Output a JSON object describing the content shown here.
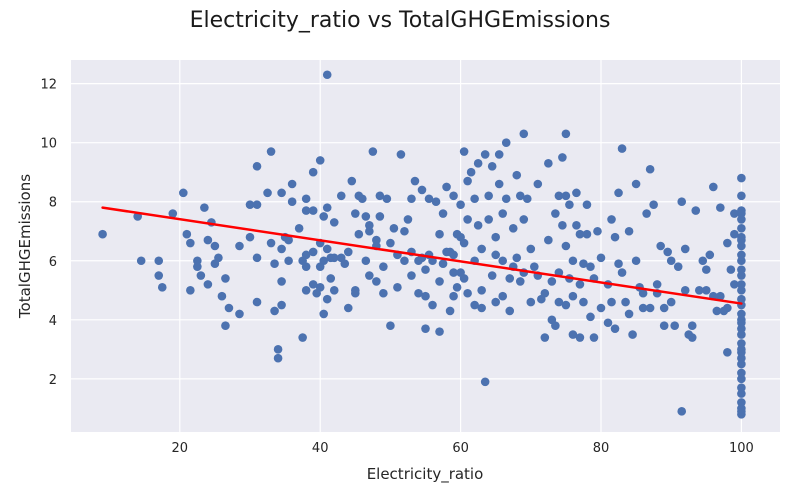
{
  "chart_data": {
    "type": "scatter",
    "title": "Electricity_ratio vs TotalGHGEmissions",
    "xlabel": "Electricity_ratio",
    "ylabel": "TotalGHGEmissions",
    "xlim": [
      4.5,
      105.5
    ],
    "ylim": [
      0.2,
      12.8
    ],
    "xticks": [
      20,
      40,
      60,
      80,
      100
    ],
    "yticks": [
      2,
      4,
      6,
      8,
      10,
      12
    ],
    "grid": true,
    "legend": "none",
    "colors": {
      "points": "#4c72b0",
      "trend": "#ff0000",
      "plot_bg": "#eaeaf2",
      "grid": "#ffffff"
    },
    "trend_line": {
      "x": [
        9,
        100
      ],
      "y": [
        7.8,
        4.55
      ]
    },
    "series": [
      {
        "name": "",
        "points": [
          [
            9,
            6.9
          ],
          [
            14,
            7.5
          ],
          [
            14.5,
            6.0
          ],
          [
            17,
            6.0
          ],
          [
            17,
            5.5
          ],
          [
            17.5,
            5.1
          ],
          [
            19,
            7.6
          ],
          [
            20.5,
            8.3
          ],
          [
            21,
            6.9
          ],
          [
            21.5,
            6.6
          ],
          [
            21.5,
            5.0
          ],
          [
            22.5,
            6.0
          ],
          [
            22.5,
            5.8
          ],
          [
            23,
            5.5
          ],
          [
            23.5,
            7.8
          ],
          [
            24,
            6.7
          ],
          [
            24,
            5.2
          ],
          [
            24.5,
            7.3
          ],
          [
            25,
            6.5
          ],
          [
            25,
            5.9
          ],
          [
            25.5,
            6.1
          ],
          [
            26,
            4.8
          ],
          [
            26.5,
            5.4
          ],
          [
            26.5,
            3.8
          ],
          [
            27,
            4.4
          ],
          [
            28.5,
            6.5
          ],
          [
            28.5,
            4.2
          ],
          [
            30,
            7.9
          ],
          [
            30,
            6.8
          ],
          [
            31,
            9.2
          ],
          [
            31,
            7.9
          ],
          [
            31,
            6.1
          ],
          [
            31,
            4.6
          ],
          [
            32.5,
            8.3
          ],
          [
            33,
            9.7
          ],
          [
            33,
            6.6
          ],
          [
            33.5,
            5.9
          ],
          [
            33.5,
            4.3
          ],
          [
            34,
            2.7
          ],
          [
            34,
            3.0
          ],
          [
            34.5,
            8.3
          ],
          [
            34.5,
            6.4
          ],
          [
            34.5,
            5.3
          ],
          [
            34.5,
            4.5
          ],
          [
            35,
            6.8
          ],
          [
            35.5,
            6.7
          ],
          [
            35.5,
            6.0
          ],
          [
            36,
            8.0
          ],
          [
            36,
            8.6
          ],
          [
            37,
            7.1
          ],
          [
            37.5,
            6.0
          ],
          [
            37.5,
            3.4
          ],
          [
            38,
            8.1
          ],
          [
            38,
            7.7
          ],
          [
            38,
            6.2
          ],
          [
            38,
            5.8
          ],
          [
            38,
            5.0
          ],
          [
            39,
            9.0
          ],
          [
            39,
            7.7
          ],
          [
            39,
            6.3
          ],
          [
            39,
            5.2
          ],
          [
            39.5,
            4.9
          ],
          [
            40,
            9.4
          ],
          [
            40,
            6.6
          ],
          [
            40,
            5.8
          ],
          [
            40,
            5.1
          ],
          [
            40.5,
            4.2
          ],
          [
            40.5,
            7.5
          ],
          [
            40.5,
            6.0
          ],
          [
            41,
            12.3
          ],
          [
            41,
            7.8
          ],
          [
            41,
            6.4
          ],
          [
            41,
            4.7
          ],
          [
            41.5,
            6.1
          ],
          [
            41.5,
            5.4
          ],
          [
            42,
            6.1
          ],
          [
            42,
            5.0
          ],
          [
            42,
            7.3
          ],
          [
            43,
            6.1
          ],
          [
            43,
            8.2
          ],
          [
            43.5,
            5.9
          ],
          [
            44,
            4.4
          ],
          [
            44,
            6.3
          ],
          [
            44.5,
            8.7
          ],
          [
            45,
            7.6
          ],
          [
            45,
            5.0
          ],
          [
            45,
            4.9
          ],
          [
            45.5,
            8.2
          ],
          [
            45.5,
            6.9
          ],
          [
            46,
            8.1
          ],
          [
            46.5,
            7.5
          ],
          [
            46.5,
            6.0
          ],
          [
            47,
            7.0
          ],
          [
            47,
            7.2
          ],
          [
            47,
            5.5
          ],
          [
            47.5,
            9.7
          ],
          [
            48,
            6.7
          ],
          [
            48,
            6.5
          ],
          [
            48,
            5.3
          ],
          [
            48.5,
            8.2
          ],
          [
            48.5,
            7.5
          ],
          [
            49,
            5.8
          ],
          [
            49,
            4.9
          ],
          [
            49.5,
            8.1
          ],
          [
            50,
            6.6
          ],
          [
            50,
            3.8
          ],
          [
            50.5,
            7.1
          ],
          [
            51,
            6.2
          ],
          [
            51,
            5.1
          ],
          [
            51.5,
            9.6
          ],
          [
            52,
            6.0
          ],
          [
            52,
            7.0
          ],
          [
            52.5,
            7.4
          ],
          [
            53,
            6.3
          ],
          [
            53,
            8.1
          ],
          [
            53,
            5.5
          ],
          [
            53.5,
            8.7
          ],
          [
            54,
            6.0
          ],
          [
            54,
            4.9
          ],
          [
            54.5,
            6.1
          ],
          [
            54.5,
            8.4
          ],
          [
            55,
            4.8
          ],
          [
            55,
            5.7
          ],
          [
            55,
            3.7
          ],
          [
            55.5,
            6.2
          ],
          [
            55.5,
            8.1
          ],
          [
            56,
            4.5
          ],
          [
            56,
            6.0
          ],
          [
            56.5,
            8.0
          ],
          [
            57,
            3.6
          ],
          [
            57,
            5.3
          ],
          [
            57,
            6.9
          ],
          [
            57.5,
            7.6
          ],
          [
            57.5,
            5.9
          ],
          [
            58,
            8.5
          ],
          [
            58,
            6.3
          ],
          [
            58.5,
            6.3
          ],
          [
            58.5,
            4.3
          ],
          [
            59,
            6.2
          ],
          [
            59,
            8.2
          ],
          [
            59,
            5.6
          ],
          [
            59,
            4.8
          ],
          [
            59.5,
            6.9
          ],
          [
            59.5,
            5.1
          ],
          [
            60,
            6.8
          ],
          [
            60,
            7.9
          ],
          [
            60,
            5.6
          ],
          [
            60.5,
            9.7
          ],
          [
            60.5,
            6.6
          ],
          [
            60.5,
            5.4
          ],
          [
            61,
            8.7
          ],
          [
            61,
            7.4
          ],
          [
            61,
            4.9
          ],
          [
            61.5,
            9.0
          ],
          [
            62,
            6.0
          ],
          [
            62,
            8.1
          ],
          [
            62,
            4.5
          ],
          [
            62.5,
            9.3
          ],
          [
            62.5,
            7.2
          ],
          [
            63,
            6.4
          ],
          [
            63,
            5.0
          ],
          [
            63,
            4.4
          ],
          [
            63.5,
            9.6
          ],
          [
            63.5,
            1.9
          ],
          [
            64,
            7.4
          ],
          [
            64,
            8.2
          ],
          [
            64.5,
            5.5
          ],
          [
            64.5,
            9.2
          ],
          [
            65,
            6.2
          ],
          [
            65,
            6.8
          ],
          [
            65,
            4.6
          ],
          [
            65.5,
            9.6
          ],
          [
            65.5,
            8.6
          ],
          [
            66,
            4.8
          ],
          [
            66,
            6.0
          ],
          [
            66,
            7.6
          ],
          [
            66.5,
            8.1
          ],
          [
            66.5,
            10.0
          ],
          [
            67,
            5.4
          ],
          [
            67,
            4.3
          ],
          [
            67.5,
            5.8
          ],
          [
            67.5,
            7.1
          ],
          [
            68,
            8.9
          ],
          [
            68,
            6.1
          ],
          [
            68.5,
            8.2
          ],
          [
            68.5,
            5.3
          ],
          [
            69,
            10.3
          ],
          [
            69,
            7.4
          ],
          [
            69,
            5.6
          ],
          [
            69.5,
            8.1
          ],
          [
            70,
            6.4
          ],
          [
            70,
            4.6
          ],
          [
            70.5,
            5.8
          ],
          [
            71,
            8.6
          ],
          [
            71,
            5.5
          ],
          [
            71.5,
            4.7
          ],
          [
            72,
            3.4
          ],
          [
            72,
            4.9
          ],
          [
            72.5,
            6.7
          ],
          [
            72.5,
            9.3
          ],
          [
            73,
            4.0
          ],
          [
            73,
            5.3
          ],
          [
            73.5,
            7.6
          ],
          [
            73.5,
            3.8
          ],
          [
            74,
            5.6
          ],
          [
            74,
            8.2
          ],
          [
            74,
            4.6
          ],
          [
            74.5,
            9.5
          ],
          [
            74.5,
            7.2
          ],
          [
            75,
            10.3
          ],
          [
            75,
            8.2
          ],
          [
            75,
            6.5
          ],
          [
            75,
            4.5
          ],
          [
            75.5,
            5.4
          ],
          [
            75.5,
            7.9
          ],
          [
            76,
            3.5
          ],
          [
            76,
            4.8
          ],
          [
            76,
            6.0
          ],
          [
            76.5,
            8.3
          ],
          [
            76.5,
            7.2
          ],
          [
            77,
            3.4
          ],
          [
            77,
            5.2
          ],
          [
            77,
            6.9
          ],
          [
            77.5,
            5.9
          ],
          [
            77.5,
            4.6
          ],
          [
            78,
            6.9
          ],
          [
            78,
            7.9
          ],
          [
            78.5,
            4.1
          ],
          [
            78.5,
            5.8
          ],
          [
            79,
            5.4
          ],
          [
            79,
            3.4
          ],
          [
            79.5,
            7.0
          ],
          [
            80,
            6.1
          ],
          [
            80,
            4.4
          ],
          [
            81,
            3.9
          ],
          [
            81,
            5.2
          ],
          [
            81.5,
            7.4
          ],
          [
            81.5,
            4.6
          ],
          [
            82,
            3.7
          ],
          [
            82,
            6.8
          ],
          [
            82.5,
            5.9
          ],
          [
            82.5,
            8.3
          ],
          [
            83,
            9.8
          ],
          [
            83,
            5.6
          ],
          [
            83.5,
            4.6
          ],
          [
            84,
            7.0
          ],
          [
            84,
            4.2
          ],
          [
            84.5,
            3.5
          ],
          [
            85,
            8.6
          ],
          [
            85,
            6.0
          ],
          [
            85.5,
            5.1
          ],
          [
            86,
            4.9
          ],
          [
            86,
            4.4
          ],
          [
            86.5,
            7.6
          ],
          [
            87,
            9.1
          ],
          [
            87,
            4.4
          ],
          [
            87.5,
            7.9
          ],
          [
            88,
            5.2
          ],
          [
            88,
            4.9
          ],
          [
            88.5,
            6.5
          ],
          [
            89,
            3.8
          ],
          [
            89,
            4.4
          ],
          [
            89.5,
            6.3
          ],
          [
            90,
            6.0
          ],
          [
            90,
            4.6
          ],
          [
            90.5,
            3.8
          ],
          [
            91,
            5.8
          ],
          [
            91.5,
            8.0
          ],
          [
            91.5,
            0.9
          ],
          [
            92,
            5.0
          ],
          [
            92,
            6.4
          ],
          [
            92.5,
            3.5
          ],
          [
            93,
            3.8
          ],
          [
            93,
            3.4
          ],
          [
            93.5,
            7.7
          ],
          [
            94,
            5.0
          ],
          [
            94.5,
            6.0
          ],
          [
            95,
            5.7
          ],
          [
            95,
            5.0
          ],
          [
            95.5,
            6.2
          ],
          [
            96,
            4.8
          ],
          [
            96,
            8.5
          ],
          [
            96.5,
            4.3
          ],
          [
            97,
            7.8
          ],
          [
            97,
            4.8
          ],
          [
            97.5,
            4.3
          ],
          [
            98,
            6.6
          ],
          [
            98,
            4.4
          ],
          [
            98,
            2.9
          ],
          [
            98.5,
            5.7
          ],
          [
            99,
            6.9
          ],
          [
            99,
            7.6
          ],
          [
            99,
            5.2
          ],
          [
            100,
            8.8
          ],
          [
            100,
            8.2
          ],
          [
            100,
            7.6
          ],
          [
            100,
            7.4
          ],
          [
            100,
            7.1
          ],
          [
            100,
            6.8
          ],
          [
            100,
            6.5
          ],
          [
            100,
            6.2
          ],
          [
            100,
            6.0
          ],
          [
            100,
            5.7
          ],
          [
            100,
            5.5
          ],
          [
            100,
            5.2
          ],
          [
            100,
            5.0
          ],
          [
            100,
            4.7
          ],
          [
            100,
            4.5
          ],
          [
            100,
            4.2
          ],
          [
            100,
            4.0
          ],
          [
            100,
            3.7
          ],
          [
            100,
            3.5
          ],
          [
            100,
            3.2
          ],
          [
            100,
            3.0
          ],
          [
            100,
            2.7
          ],
          [
            100,
            2.5
          ],
          [
            100,
            2.2
          ],
          [
            100,
            2.0
          ],
          [
            100,
            1.7
          ],
          [
            100,
            1.5
          ],
          [
            100,
            1.2
          ],
          [
            100,
            1.0
          ],
          [
            100,
            0.8
          ],
          [
            100,
            0.9
          ],
          [
            100,
            3.9
          ],
          [
            100,
            6.7
          ],
          [
            100,
            7.7
          ],
          [
            100,
            2.9
          ]
        ]
      }
    ]
  }
}
